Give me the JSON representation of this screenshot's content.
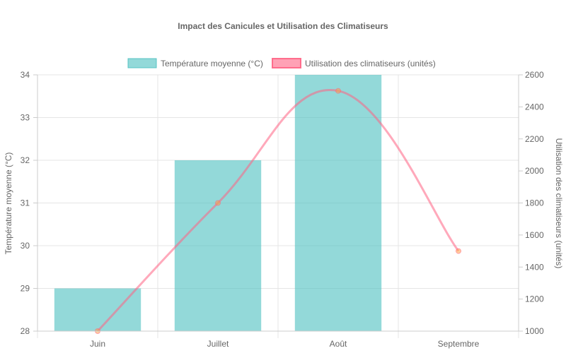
{
  "chart_data": {
    "type": "bar",
    "title": "Impact des Canicules et Utilisation des Climatiseurs",
    "categories": [
      "Juin",
      "Juillet",
      "Août",
      "Septembre"
    ],
    "series": [
      {
        "name": "Température moyenne (°C)",
        "type": "bar",
        "axis": "left",
        "values": [
          29,
          32,
          34,
          null
        ],
        "color": "#4bc0c0"
      },
      {
        "name": "Utilisation des climatiseurs (unités)",
        "type": "line",
        "axis": "right",
        "values": [
          1000,
          1800,
          2500,
          1500
        ],
        "color": "#ff6384"
      }
    ],
    "y_left": {
      "label": "Température moyenne (°C)",
      "range": [
        28,
        34
      ],
      "ticks": [
        "28",
        "29",
        "30",
        "31",
        "32",
        "33",
        "34"
      ]
    },
    "y_right": {
      "label": "Utilisation des climatiseurs (unités)",
      "range": [
        1000,
        2600
      ],
      "ticks": [
        "1000",
        "1200",
        "1400",
        "1600",
        "1800",
        "2000",
        "2200",
        "2400",
        "2600"
      ]
    },
    "grid": true,
    "legend_position": "top"
  }
}
